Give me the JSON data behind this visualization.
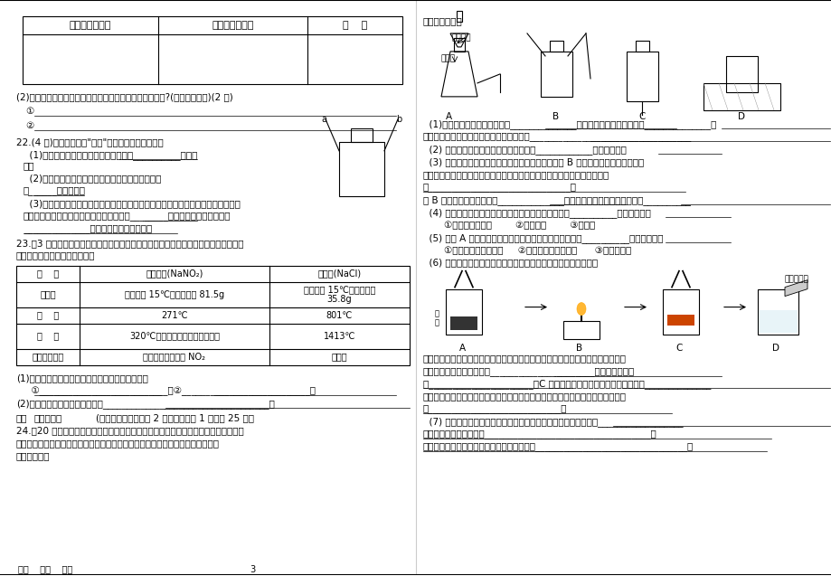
{
  "page_bg": "#ffffff",
  "page_width": 9.2,
  "page_height": 6.37,
  "dpi": 100,
  "left_column": {
    "table_header": [
      "验证方法及操作",
      "可能看到的现象",
      "结    论"
    ],
    "q21_2": "(2)假如你是商家，你对食品包装袋中的气体有什么要求呢?(至少说出二点)(2 分)",
    "q21_2_1": "①",
    "q21_2_2": "②",
    "q22_header": "22.(4 分)右图是化学中\"有名\"的装置，有如下用途：",
    "q22_1": "  (1)可以用做向上排空气法收集氧气，从__________端进氧",
    "q22_1b": "气。",
    "q22_2": "  (2)可以用做排水法收集氧气，在集气瓶中装满水，",
    "q22_2b": "从______端进氧气。",
    "q22_3": "  (3)医院里给病人输氧为了给氧气加湿和观察氧气的输出速度，也可以在氧气瓶和病",
    "q22_3b": "人之间连接该装置，在集气瓶装半瓶水，将________端接氧气钢瓶，通过观察",
    "q22_3c": "______________就知道氧气的输出速度。",
    "q23_header": "23.（3 分）某地曾发生了一起亚硝酸钠中毒事件，亚硝酸钠外观酷似食盐且有咸味，亚",
    "q23_headerb": "硝酸钠和食盐的有关资料如下：",
    "table2_col0": [
      "项    目",
      "水溶性",
      "熔    点",
      "沸    点",
      "跟稀盐酸作用"
    ],
    "table2_col1": [
      "亚硝酸钠(NaNO₂)",
      "易溶，在 15℃时溶解度为 81.5g",
      "271℃",
      "320℃会分解，放出有臭味的气体",
      "放出红棕色的气体 NO₂"
    ],
    "table2_col2": [
      "氯化钠(NaCl)",
      "易溶，在 15℃时溶解度为\n35.8g",
      "801℃",
      "1413℃",
      "无反应"
    ],
    "q23_1": "(1)根据上表，请你写出亚硝酸钠的两个物理性质：",
    "q23_1a": "  ①___________________________，②___________________________；",
    "q23_2": "(2)检验亚硝酸钠的方法可以是：___________________________________。",
    "q24_header": "三、实验探究题(每个反应文字表达式 2 分，其余每空 1 分，计 25 分）",
    "q24_intro": "24.（20 分）实验室可用下图所示装置进行过氧化氢的分解。过氧化氢溶液在二氧化锰",
    "q24_introb": "作催化剂的条件下能迅速分解生成氧气和水。分液漏斗可以通过调节活塞控制液体",
    "q24_introc": "的滴加速度。"
  },
  "right_column": {
    "header": "回答下列问题：",
    "q1": "  (1)分液漏斗中应放入的物质是______________，锥形瓶中应放入的物质是______________，",
    "q1b": "写出反应文字表达式并注明基本反应类型：__________________________________",
    "q2": "  (2) 要收集一瓶纯净的氧气，应选择装置____________（填字母）。",
    "q3": "  (3) 某同学在观察到锥形瓶内有大量气泡时，开始用 B 装置收集氧气，过一段时间",
    "q3b": "后，用带火星的木条伸入瓶口、瓶中、瓶底，都未见木条复燃。其原因可能",
    "q3c": "是______________________________，",
    "q3d": "用 B 装置收集氧气的方法是______________法，可利用此方法收集的原因是__________",
    "q4": "  (4) 若实验时用此法代替高锰酸钾加热制取氧气优点是__________（填编号）。",
    "q4a": "    ①生成物只有氧气        ②不需加热        ③需加热",
    "q5": "  (5) 装置 A 中反应很剧烈，据此提出实验安全注意事项是__________（填编号）。",
    "q5a": "    ①控制液体的滴加速度     ②用体积较小的锥形瓶      ③加热反应物",
    "q6": "  (6) 下图所示是木炭在氧气中燃烧的实验操作，试回答下列问题：",
    "labels_abcd": "A                    B                    C                    D",
    "q6a": "做木炭在氧气中燃烧的实验时，如果一开始就把红热的木炭很快地插入盛氧气的集",
    "q6ab": "气瓶下部，会出现的后果是______________________，正确的操作应",
    "q6ac": "是______________________；C 图中，木炭在氧气中燃烧发生的现象是______________",
    "q6b": "燃烧停止后，取出坩埚钳，往集气瓶里加入少量的澄清石灰水，摇荡，发生的现象",
    "q6bb": "是____________________________。",
    "q7": "  (7) 做铁丝在氧气中燃烧的实验时，把铁丝绕成螺旋状，其作用是__________________",
    "q7b": "实验中可观察到的现象是___________________________________；",
    "q7c": "集气瓶里预先要装入少量的细沙或水，原因是________________________________；",
    "footer": "爱心    用心    专心                                                               3"
  }
}
